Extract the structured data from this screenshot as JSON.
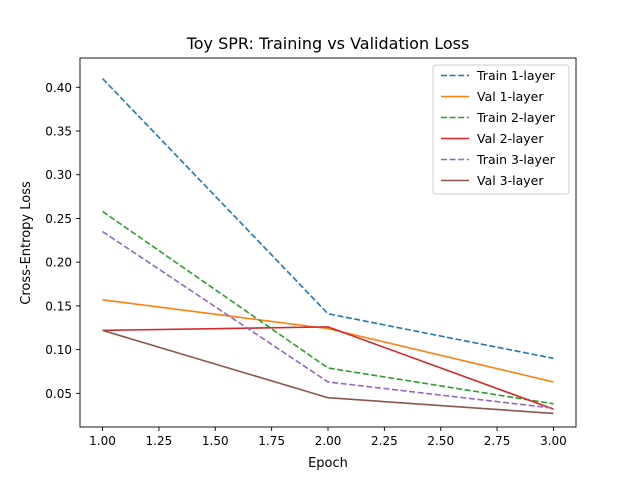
{
  "chart_data": {
    "type": "line",
    "title": "Toy SPR: Training vs Validation Loss",
    "xlabel": "Epoch",
    "ylabel": "Cross-Entropy Loss",
    "xlim": [
      0.9,
      3.1
    ],
    "ylim": [
      0.0115,
      0.4335
    ],
    "xticks": [
      1.0,
      1.25,
      1.5,
      1.75,
      2.0,
      2.25,
      2.5,
      2.75,
      3.0
    ],
    "xtick_labels": [
      "1.00",
      "1.25",
      "1.50",
      "1.75",
      "2.00",
      "2.25",
      "2.50",
      "2.75",
      "3.00"
    ],
    "yticks": [
      0.05,
      0.1,
      0.15,
      0.2,
      0.25,
      0.3,
      0.35,
      0.4
    ],
    "ytick_labels": [
      "0.05",
      "0.10",
      "0.15",
      "0.20",
      "0.25",
      "0.30",
      "0.35",
      "0.40"
    ],
    "grid": false,
    "legend_position": "top-right",
    "x": [
      1,
      2,
      3
    ],
    "series": [
      {
        "name": "Train 1-layer",
        "values": [
          0.41,
          0.141,
          0.09
        ],
        "color": "#1f77b4",
        "dashed": true
      },
      {
        "name": "Val 1-layer",
        "values": [
          0.157,
          0.124,
          0.063
        ],
        "color": "#ff7f0e",
        "dashed": false
      },
      {
        "name": "Train 2-layer",
        "values": [
          0.258,
          0.079,
          0.038
        ],
        "color": "#2ca02c",
        "dashed": true
      },
      {
        "name": "Val 2-layer",
        "values": [
          0.122,
          0.126,
          0.032
        ],
        "color": "#d62728",
        "dashed": false
      },
      {
        "name": "Train 3-layer",
        "values": [
          0.235,
          0.063,
          0.033
        ],
        "color": "#9467bd",
        "dashed": true
      },
      {
        "name": "Val 3-layer",
        "values": [
          0.122,
          0.045,
          0.027
        ],
        "color": "#8c564b",
        "dashed": false
      }
    ]
  }
}
